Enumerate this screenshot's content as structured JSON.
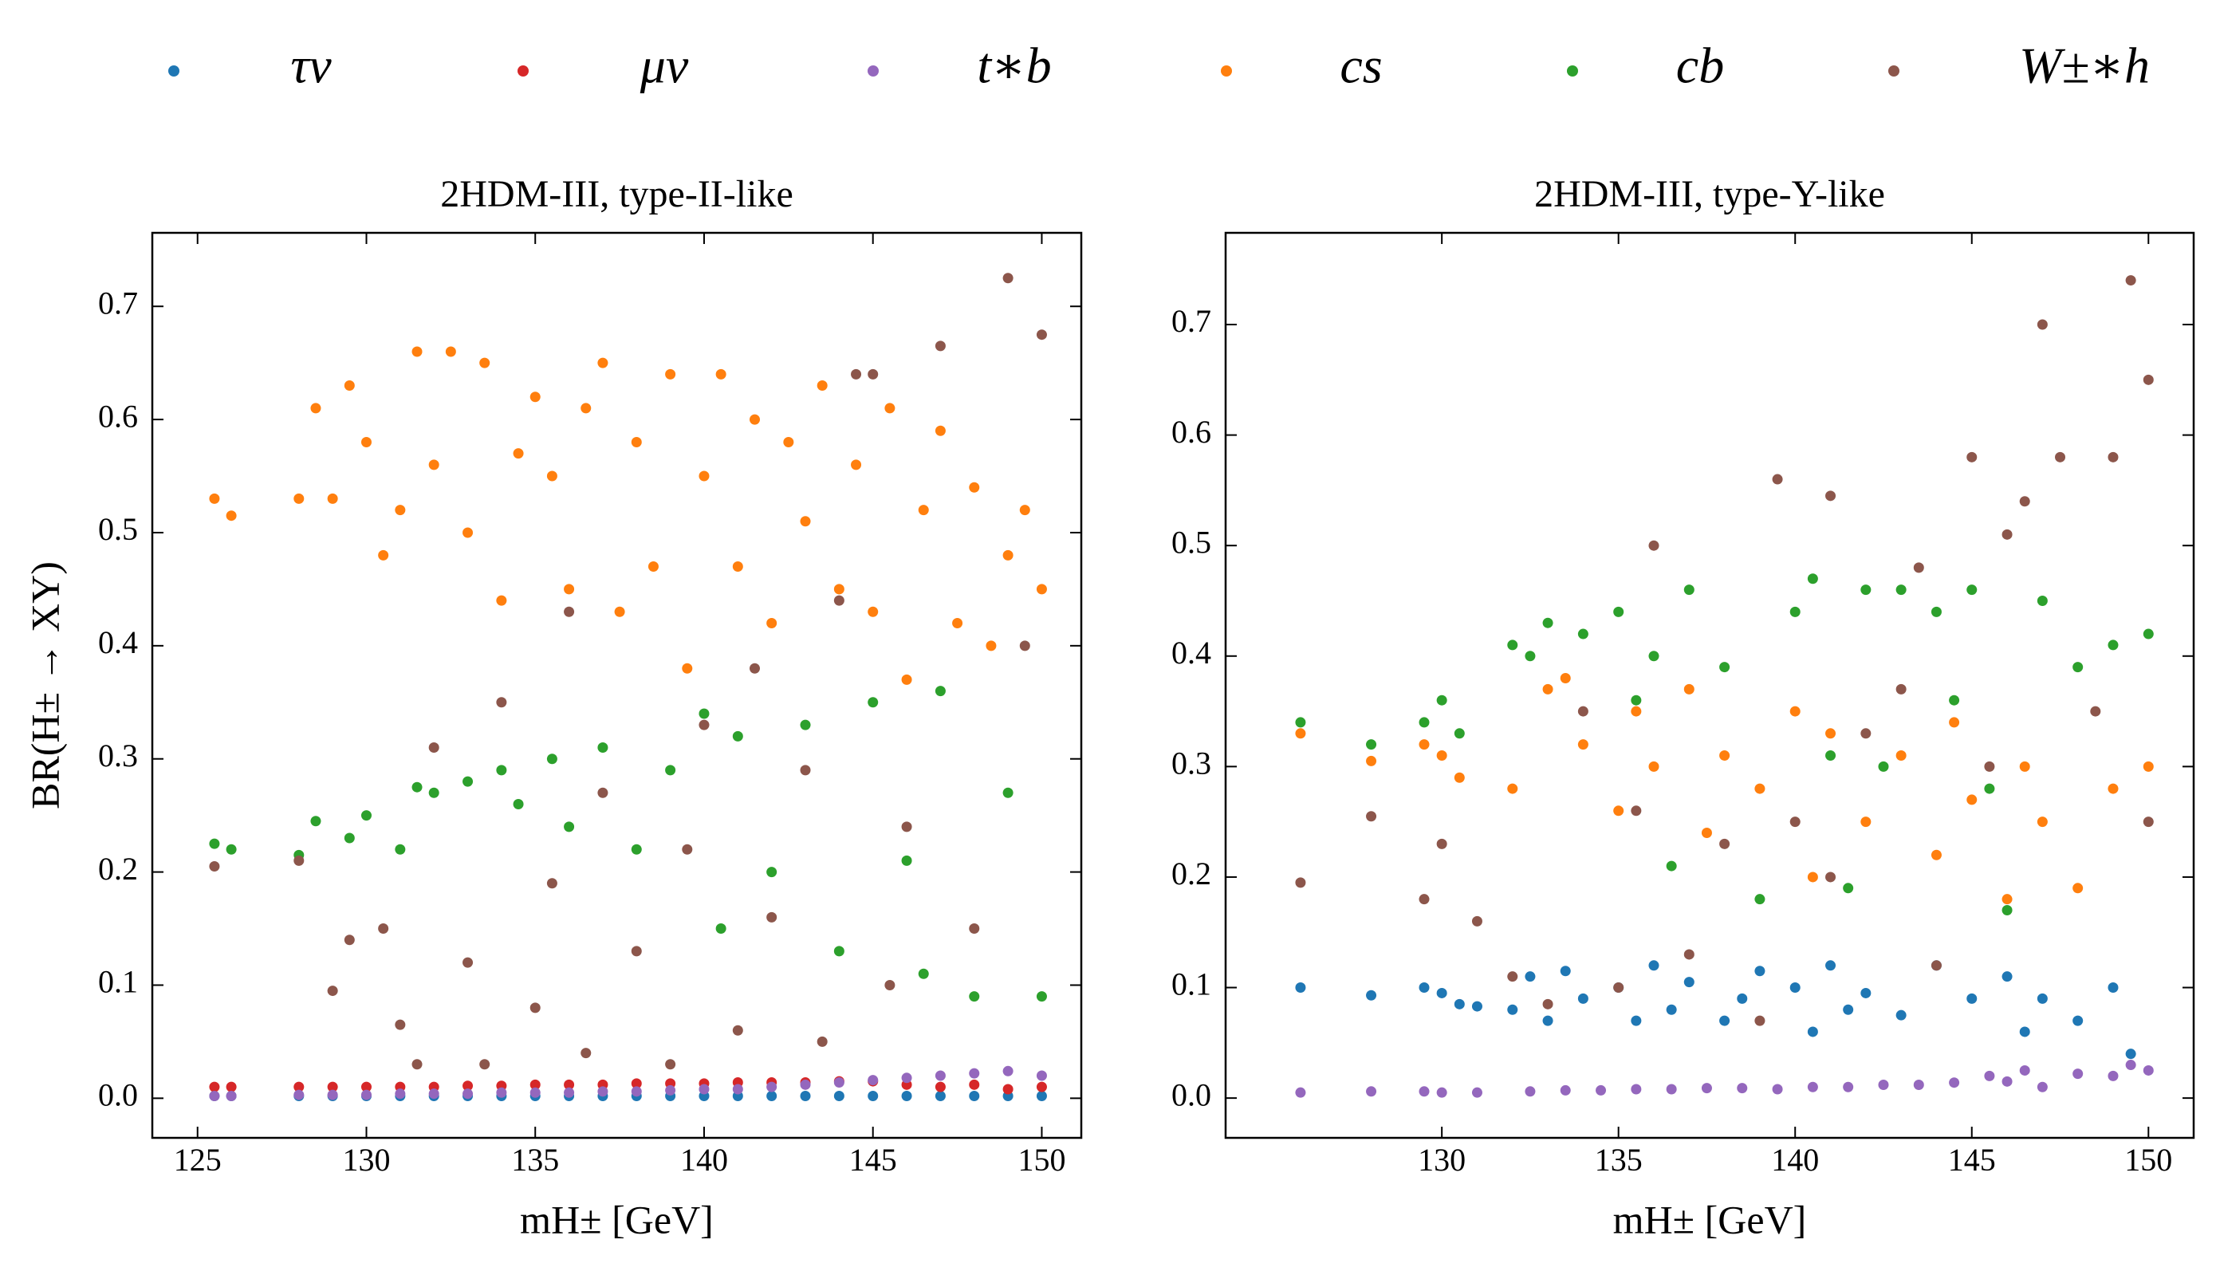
{
  "chart_data": [
    {
      "type": "scatter",
      "title": "2HDM-III, type-II-like",
      "xlabel": "mH± [GeV]",
      "ylabel": "BR(H± → XY)",
      "xlim": [
        123.66,
        151.17
      ],
      "ylim": [
        -0.035,
        0.765
      ],
      "xticks": [
        125,
        130,
        135,
        140,
        145,
        150
      ],
      "yticks": [
        {
          "value": 0,
          "label": "0.0"
        },
        0.1,
        0.2,
        0.3,
        0.4,
        0.5,
        0.6,
        0.7
      ],
      "series": [
        {
          "name": "τν",
          "color": "#1f77b4",
          "x": [
            125.5,
            126,
            128,
            129,
            130,
            131,
            132,
            133,
            134,
            135,
            136,
            137,
            138,
            139,
            140,
            141,
            142,
            143,
            144,
            145,
            146,
            147,
            148,
            149,
            150
          ],
          "y": [
            0.002,
            0.002,
            0.002,
            0.002,
            0.002,
            0.002,
            0.002,
            0.002,
            0.002,
            0.002,
            0.002,
            0.002,
            0.002,
            0.002,
            0.002,
            0.002,
            0.002,
            0.002,
            0.002,
            0.002,
            0.002,
            0.002,
            0.002,
            0.002,
            0.002
          ]
        },
        {
          "name": "μν",
          "color": "#d62728",
          "x": [
            125.5,
            126,
            128,
            129,
            130,
            131,
            132,
            133,
            134,
            135,
            136,
            137,
            138,
            139,
            140,
            141,
            142,
            143,
            144,
            145,
            146,
            147,
            148,
            149,
            150
          ],
          "y": [
            0.01,
            0.01,
            0.01,
            0.01,
            0.01,
            0.01,
            0.01,
            0.011,
            0.011,
            0.012,
            0.012,
            0.012,
            0.013,
            0.013,
            0.013,
            0.014,
            0.014,
            0.014,
            0.015,
            0.015,
            0.012,
            0.01,
            0.012,
            0.008,
            0.01
          ]
        },
        {
          "name": "t∗b",
          "color": "#9467bd",
          "x": [
            125.5,
            126,
            128,
            129,
            130,
            131,
            132,
            133,
            134,
            135,
            136,
            137,
            138,
            139,
            140,
            141,
            142,
            143,
            144,
            145,
            146,
            147,
            148,
            149,
            150
          ],
          "y": [
            0.002,
            0.002,
            0.003,
            0.003,
            0.003,
            0.004,
            0.004,
            0.004,
            0.005,
            0.005,
            0.005,
            0.006,
            0.006,
            0.007,
            0.008,
            0.008,
            0.01,
            0.012,
            0.014,
            0.016,
            0.018,
            0.02,
            0.022,
            0.024,
            0.02
          ]
        },
        {
          "name": "cs",
          "color": "#ff7f0e",
          "x": [
            125.5,
            126,
            128,
            128.5,
            129,
            129.5,
            130,
            130.5,
            131,
            131.5,
            132,
            132.5,
            133,
            133.5,
            134,
            134.5,
            135,
            135.5,
            136,
            136.5,
            137,
            137.5,
            138,
            138.5,
            139,
            139.5,
            140,
            140.5,
            141,
            141.5,
            142,
            142.5,
            143,
            143.5,
            144,
            144.5,
            145,
            145.5,
            146,
            146.5,
            147,
            147.5,
            148,
            148.5,
            149,
            149.5,
            150
          ],
          "y": [
            0.53,
            0.515,
            0.53,
            0.61,
            0.53,
            0.63,
            0.58,
            0.48,
            0.52,
            0.66,
            0.56,
            0.66,
            0.5,
            0.65,
            0.44,
            0.57,
            0.62,
            0.55,
            0.45,
            0.61,
            0.65,
            0.43,
            0.58,
            0.47,
            0.64,
            0.38,
            0.55,
            0.64,
            0.47,
            0.6,
            0.42,
            0.58,
            0.51,
            0.63,
            0.45,
            0.56,
            0.43,
            0.61,
            0.37,
            0.52,
            0.59,
            0.42,
            0.54,
            0.4,
            0.48,
            0.52,
            0.45
          ]
        },
        {
          "name": "cb",
          "color": "#2ca02c",
          "x": [
            125.5,
            126,
            128,
            128.5,
            129.5,
            130,
            131,
            131.5,
            132,
            133,
            134,
            134.5,
            135.5,
            136,
            137,
            138,
            139,
            140,
            140.5,
            141,
            142,
            143,
            144,
            145,
            146,
            146.5,
            147,
            148,
            149,
            150
          ],
          "y": [
            0.225,
            0.22,
            0.215,
            0.245,
            0.23,
            0.25,
            0.22,
            0.275,
            0.27,
            0.28,
            0.29,
            0.26,
            0.3,
            0.24,
            0.31,
            0.22,
            0.29,
            0.34,
            0.15,
            0.32,
            0.2,
            0.33,
            0.13,
            0.35,
            0.21,
            0.11,
            0.36,
            0.09,
            0.27,
            0.09
          ]
        },
        {
          "name": "W±∗h",
          "color": "#8c564b",
          "x": [
            125.5,
            128,
            129,
            129.5,
            130.5,
            131,
            131.5,
            132,
            133,
            133.5,
            134,
            135,
            135.5,
            136,
            136.5,
            137,
            138,
            139,
            139.5,
            140,
            141,
            141.5,
            142,
            143,
            143.5,
            144,
            144.5,
            145,
            145.5,
            146,
            147,
            148,
            149,
            149.5,
            150
          ],
          "y": [
            0.205,
            0.21,
            0.095,
            0.14,
            0.15,
            0.065,
            0.03,
            0.31,
            0.12,
            0.03,
            0.35,
            0.08,
            0.19,
            0.43,
            0.04,
            0.27,
            0.13,
            0.03,
            0.22,
            0.33,
            0.06,
            0.38,
            0.16,
            0.29,
            0.05,
            0.44,
            0.64,
            0.64,
            0.1,
            0.24,
            0.665,
            0.15,
            0.725,
            0.4,
            0.675
          ]
        }
      ]
    },
    {
      "type": "scatter",
      "title": "2HDM-III, type-Y-like",
      "xlabel": "mH± [GeV]",
      "xlim": [
        123.88,
        151.28
      ],
      "ylim": [
        -0.036,
        0.783
      ],
      "xticks": [
        130,
        135,
        140,
        145,
        150
      ],
      "yticks": [
        {
          "value": 0,
          "label": "0.0"
        },
        0.1,
        0.2,
        0.3,
        0.4,
        0.5,
        0.6,
        0.7
      ],
      "series": [
        {
          "color": "#1f77b4",
          "x": [
            126,
            128,
            129.5,
            130,
            130.5,
            131,
            132,
            132.5,
            133,
            133.5,
            134,
            135,
            135.5,
            136,
            136.5,
            137,
            138,
            138.5,
            139,
            140,
            140.5,
            141,
            141.5,
            142,
            143,
            144,
            145,
            146,
            146.5,
            147,
            148,
            149,
            149.5
          ],
          "y": [
            0.1,
            0.093,
            0.1,
            0.095,
            0.085,
            0.083,
            0.08,
            0.11,
            0.07,
            0.115,
            0.09,
            0.1,
            0.07,
            0.12,
            0.08,
            0.105,
            0.07,
            0.09,
            0.115,
            0.1,
            0.06,
            0.12,
            0.08,
            0.095,
            0.075,
            0.12,
            0.09,
            0.11,
            0.06,
            0.09,
            0.07,
            0.1,
            0.04
          ]
        },
        {
          "color": "#9467bd",
          "x": [
            126,
            128,
            129.5,
            130,
            131,
            132.5,
            133.5,
            134.5,
            135.5,
            136.5,
            137.5,
            138.5,
            139.5,
            140.5,
            141.5,
            142.5,
            143.5,
            144.5,
            145.5,
            146,
            146.5,
            147,
            148,
            149,
            149.5,
            150
          ],
          "y": [
            0.005,
            0.006,
            0.006,
            0.005,
            0.005,
            0.006,
            0.007,
            0.007,
            0.008,
            0.008,
            0.009,
            0.009,
            0.008,
            0.01,
            0.01,
            0.012,
            0.012,
            0.014,
            0.02,
            0.015,
            0.025,
            0.01,
            0.022,
            0.02,
            0.03,
            0.025
          ]
        },
        {
          "color": "#ff7f0e",
          "x": [
            126,
            128,
            129.5,
            130,
            130.5,
            132,
            133,
            133.5,
            134,
            135,
            135.5,
            136,
            137,
            137.5,
            138,
            139,
            140,
            140.5,
            141,
            142,
            143,
            144,
            144.5,
            145,
            146,
            146.5,
            147,
            148,
            149,
            150
          ],
          "y": [
            0.33,
            0.305,
            0.32,
            0.31,
            0.29,
            0.28,
            0.37,
            0.38,
            0.32,
            0.26,
            0.35,
            0.3,
            0.37,
            0.24,
            0.31,
            0.28,
            0.35,
            0.2,
            0.33,
            0.25,
            0.31,
            0.22,
            0.34,
            0.27,
            0.18,
            0.3,
            0.25,
            0.19,
            0.28,
            0.3
          ]
        },
        {
          "color": "#2ca02c",
          "x": [
            126,
            128,
            129.5,
            130,
            130.5,
            132,
            132.5,
            133,
            134,
            135,
            135.5,
            136,
            136.5,
            137,
            138,
            139,
            140,
            140.5,
            141,
            141.5,
            142,
            142.5,
            143,
            144,
            144.5,
            145,
            145.5,
            146,
            147,
            148,
            149,
            150
          ],
          "y": [
            0.34,
            0.32,
            0.34,
            0.36,
            0.33,
            0.41,
            0.4,
            0.43,
            0.42,
            0.44,
            0.36,
            0.4,
            0.21,
            0.46,
            0.39,
            0.18,
            0.44,
            0.47,
            0.31,
            0.19,
            0.46,
            0.3,
            0.46,
            0.44,
            0.36,
            0.46,
            0.28,
            0.17,
            0.45,
            0.39,
            0.41,
            0.42
          ]
        },
        {
          "color": "#8c564b",
          "x": [
            126,
            128,
            129.5,
            130,
            131,
            132,
            133,
            134,
            135,
            135.5,
            136,
            137,
            138,
            139,
            139.5,
            140,
            141,
            141,
            142,
            143,
            143.5,
            144,
            145,
            145.5,
            146,
            146.5,
            147,
            147.5,
            148.5,
            149,
            149.5,
            150,
            150
          ],
          "y": [
            0.195,
            0.255,
            0.18,
            0.23,
            0.16,
            0.11,
            0.085,
            0.35,
            0.1,
            0.26,
            0.5,
            0.13,
            0.23,
            0.07,
            0.56,
            0.25,
            0.545,
            0.2,
            0.33,
            0.37,
            0.48,
            0.12,
            0.58,
            0.3,
            0.51,
            0.54,
            0.7,
            0.58,
            0.35,
            0.58,
            0.74,
            0.65,
            0.25
          ]
        }
      ]
    }
  ]
}
